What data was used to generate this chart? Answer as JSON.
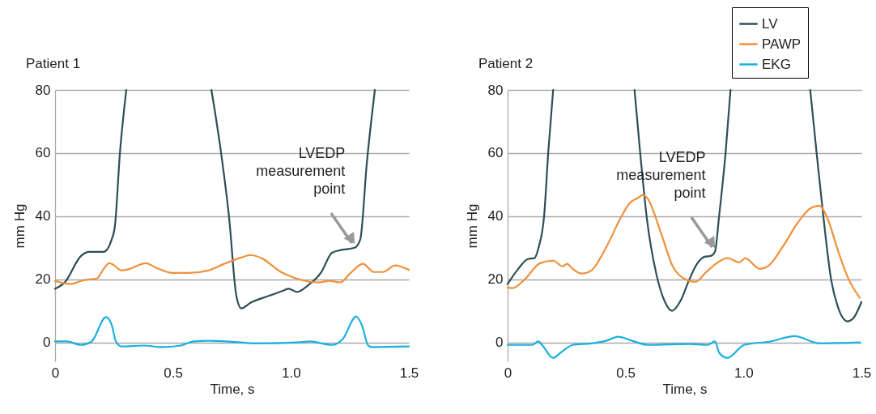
{
  "chart_data": [
    {
      "type": "line",
      "title": "Patient 1",
      "xlabel": "Time, s",
      "ylabel": "mm Hg",
      "xlim": [
        0,
        1.5
      ],
      "xticks": [
        0,
        0.5,
        {
          "value": 1,
          "label": "1.0"
        },
        1.5
      ],
      "ylim": [
        -6,
        80
      ],
      "yticks": [
        0,
        20,
        40,
        60,
        80
      ],
      "grid": "y",
      "legend": "top right",
      "line_style": "solid",
      "series": [
        {
          "name": "LV",
          "color": "#2d4f57",
          "x": [
            0,
            0.041,
            0.11,
            0.144,
            0.206,
            0.24,
            0.254,
            0.275,
            0.302,
            0.5,
            0.663,
            0.704,
            0.738,
            0.769,
            0.79,
            0.83,
            0.9,
            0.968,
            0.99,
            1.026,
            1.071,
            1.129,
            1.174,
            1.208,
            1.27,
            1.294,
            1.322,
            1.356
          ],
          "values": [
            17,
            19,
            27.4,
            28.7,
            28.7,
            32.6,
            37,
            60,
            80,
            null,
            80,
            60,
            39.5,
            14.6,
            10.8,
            12.6,
            14.6,
            16.4,
            17,
            16,
            18,
            22.3,
            28.4,
            29.2,
            30,
            32.6,
            57,
            80
          ]
        },
        {
          "name": "PAWP",
          "color": "#f0913c",
          "x": [
            0,
            0.065,
            0.12,
            0.178,
            0.206,
            0.23,
            0.247,
            0.281,
            0.316,
            0.384,
            0.43,
            0.498,
            0.566,
            0.649,
            0.717,
            0.79,
            0.83,
            0.875,
            0.958,
            1.013,
            1.116,
            1.164,
            1.208,
            1.253,
            1.305,
            1.352,
            1.39,
            1.442,
            1.5
          ],
          "values": [
            19.5,
            18.5,
            19.7,
            20.3,
            23.3,
            25.1,
            24.6,
            22.8,
            23.3,
            25.1,
            23.6,
            22,
            22,
            22.8,
            24.9,
            26.9,
            27.7,
            26.7,
            22.3,
            20.5,
            19,
            19.5,
            19,
            22,
            24.9,
            22.3,
            22.3,
            24.4,
            23
          ]
        },
        {
          "name": "EKG",
          "color": "#1ab0e0",
          "x": [
            0,
            0.05,
            0.11,
            0.155,
            0.216,
            0.24,
            0.258,
            0.282,
            0.374,
            0.453,
            0.532,
            0.59,
            0.66,
            0.79,
            0.84,
            1.026,
            1.08,
            1.174,
            1.219,
            1.277,
            1.3,
            1.328,
            1.345,
            1.5
          ],
          "values": [
            0.3,
            0.3,
            -0.8,
            0.3,
            8,
            5.6,
            0.3,
            -1.3,
            -1,
            -1.5,
            -1,
            0.3,
            0.5,
            0,
            -0.3,
            0,
            0.3,
            -0.8,
            1,
            8.2,
            5.6,
            -1,
            -1.5,
            -1.3
          ]
        }
      ],
      "annotations": [
        {
          "text": "LVEDP measurement point",
          "x": 1.27,
          "y": 30
        }
      ]
    },
    {
      "type": "line",
      "title": "Patient 2",
      "xlabel": "Time, s",
      "ylabel": "mm Hg",
      "xlim": [
        0,
        1.5
      ],
      "xticks": [
        0,
        0.5,
        {
          "value": 1,
          "label": "1.0"
        },
        1.5
      ],
      "ylim": [
        -6,
        80
      ],
      "yticks": [
        0,
        20,
        40,
        60,
        80
      ],
      "grid": "y",
      "legend": "top right",
      "line_style": "solid",
      "series": [
        {
          "name": "LV",
          "color": "#2d4f57",
          "x": [
            0,
            0.045,
            0.086,
            0.114,
            0.131,
            0.155,
            0.172,
            0.193,
            0.35,
            0.538,
            0.562,
            0.59,
            0.631,
            0.666,
            0.697,
            0.734,
            0.769,
            0.803,
            0.838,
            0.862,
            0.879,
            0.897,
            0.924,
            0.945,
            1.1,
            1.283,
            1.31,
            1.338,
            1.372,
            1.4,
            1.441,
            1.469,
            1.5
          ],
          "values": [
            18.5,
            23.3,
            26.4,
            26.7,
            30,
            40.3,
            60,
            80,
            null,
            80,
            60,
            39.5,
            21.5,
            13,
            10,
            13.3,
            19.7,
            24.9,
            27.2,
            27.4,
            28.7,
            40.3,
            60,
            80,
            null,
            80,
            60,
            40.3,
            19.7,
            11.3,
            6.7,
            8,
            12.8
          ]
        },
        {
          "name": "PAWP",
          "color": "#f0913c",
          "x": [
            0,
            0.021,
            0.069,
            0.138,
            0.193,
            0.234,
            0.252,
            0.276,
            0.314,
            0.355,
            0.417,
            0.483,
            0.517,
            0.555,
            0.572,
            0.59,
            0.655,
            0.7,
            0.762,
            0.797,
            0.838,
            0.883,
            0.931,
            0.983,
            1.007,
            1.069,
            1.103,
            1.172,
            1.228,
            1.286,
            1.321,
            1.355,
            1.4,
            1.448,
            1.493
          ],
          "values": [
            17.4,
            17.2,
            19.7,
            25.1,
            25.9,
            24.1,
            24.9,
            23.3,
            21.8,
            22.8,
            30,
            40,
            44.1,
            45.9,
            46.7,
            45.9,
            33.6,
            24.1,
            19.7,
            19.2,
            22,
            24.9,
            26.7,
            25.4,
            26.7,
            23.3,
            24.1,
            31,
            37.7,
            42.6,
            43.3,
            39.5,
            29.2,
            19.7,
            14.1
          ]
        },
        {
          "name": "EKG",
          "color": "#1ab0e0",
          "x": [
            0,
            0.103,
            0.131,
            0.148,
            0.193,
            0.224,
            0.276,
            0.355,
            0.417,
            0.469,
            0.528,
            0.597,
            0.769,
            0.848,
            0.879,
            0.897,
            0.931,
            1.003,
            1.114,
            1.217,
            1.321,
            1.493
          ],
          "values": [
            -0.8,
            -0.8,
            0.3,
            -1,
            -4.9,
            -3.3,
            -0.8,
            -0.3,
            0.5,
            1.8,
            0.5,
            -0.8,
            -0.5,
            -0.8,
            0.3,
            -3.3,
            -4.9,
            -0.8,
            0.3,
            2,
            -0.3,
            0
          ]
        }
      ],
      "annotations": [
        {
          "text": "LVEDP measurement point",
          "x": 0.879,
          "y": 28.7
        }
      ]
    }
  ]
}
